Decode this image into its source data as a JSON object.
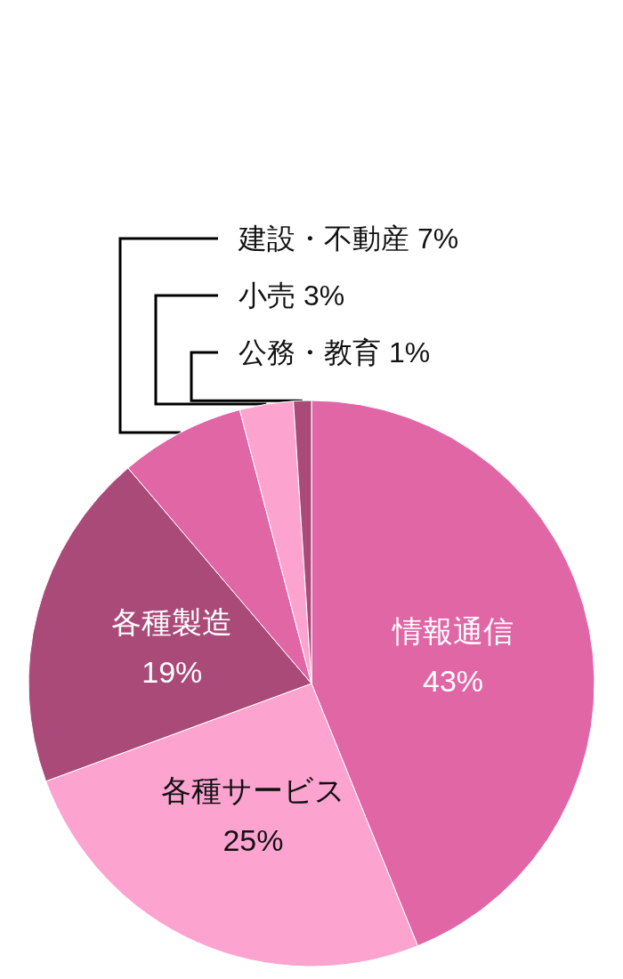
{
  "chart_data": {
    "type": "pie",
    "categories": [
      "情報通信",
      "各種サービス",
      "各種製造",
      "建設・不動産",
      "小売",
      "公務・教育"
    ],
    "values": [
      43,
      25,
      19,
      7,
      3,
      1
    ],
    "value_labels": [
      "43%",
      "25%",
      "19%",
      "7%",
      "3%",
      "1%"
    ],
    "colors": [
      "#e066a6",
      "#fca3d0",
      "#a94a78",
      "#e066a6",
      "#fca3d0",
      "#a94a78"
    ],
    "legend": false
  }
}
